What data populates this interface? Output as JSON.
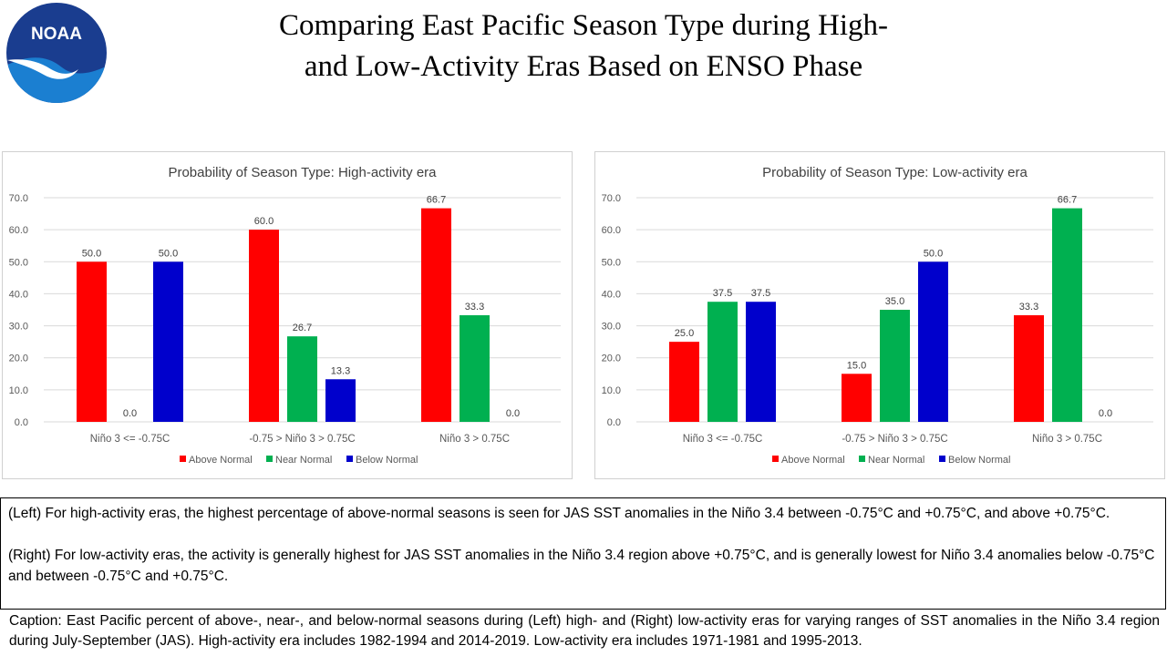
{
  "logo": {
    "text": "NOAA"
  },
  "title": {
    "line1": "Comparing East Pacific Season Type during High-",
    "line2": "and Low-Activity Eras Based on ENSO Phase"
  },
  "colors": {
    "above": "#ff0000",
    "near": "#00b050",
    "below": "#0000cc",
    "grid": "#d9d9d9"
  },
  "chart_data": [
    {
      "type": "bar",
      "title": "Probability of Season Type: High-activity era",
      "categories": [
        "Niño 3 <= -0.75C",
        "-0.75 > Niño 3 > 0.75C",
        "Niño 3 > 0.75C"
      ],
      "series": [
        {
          "name": "Above Normal",
          "values": [
            50.0,
            60.0,
            66.7
          ]
        },
        {
          "name": "Near Normal",
          "values": [
            0.0,
            26.7,
            33.3
          ]
        },
        {
          "name": "Below Normal",
          "values": [
            50.0,
            13.3,
            0.0
          ]
        }
      ],
      "yticks": [
        "0.0",
        "10.0",
        "20.0",
        "30.0",
        "40.0",
        "50.0",
        "60.0",
        "70.0"
      ],
      "ylim": [
        0,
        70
      ],
      "grid": true,
      "legend": "bottom"
    },
    {
      "type": "bar",
      "title": "Probability of Season Type: Low-activity era",
      "categories": [
        "Niño 3 <= -0.75C",
        "-0.75 > Niño 3 > 0.75C",
        "Niño 3 > 0.75C"
      ],
      "series": [
        {
          "name": "Above Normal",
          "values": [
            25.0,
            15.0,
            33.3
          ]
        },
        {
          "name": "Near Normal",
          "values": [
            37.5,
            35.0,
            66.7
          ]
        },
        {
          "name": "Below Normal",
          "values": [
            37.5,
            50.0,
            0.0
          ]
        }
      ],
      "yticks": [
        "0.0",
        "10.0",
        "20.0",
        "30.0",
        "40.0",
        "50.0",
        "60.0",
        "70.0"
      ],
      "ylim": [
        0,
        70
      ],
      "grid": true,
      "legend": "bottom"
    }
  ],
  "notes": {
    "left": "(Left) For high-activity eras, the highest percentage of above-normal seasons is seen for JAS SST anomalies in the Niño 3.4 between -0.75°C and +0.75°C, and above +0.75°C.",
    "right": "(Right) For low-activity eras, the activity is generally highest for JAS SST anomalies in the Niño 3.4 region above +0.75°C, and is generally lowest for Niño 3.4 anomalies below -0.75°C and between -0.75°C and +0.75°C."
  },
  "caption": "Caption: East Pacific percent of above-, near-, and below-normal seasons during (Left) high- and (Right) low-activity eras for varying ranges of SST anomalies in the Niño 3.4 region during July-September (JAS). High-activity era includes 1982-1994 and 2014-2019. Low-activity era includes 1971-1981 and 1995-2013."
}
